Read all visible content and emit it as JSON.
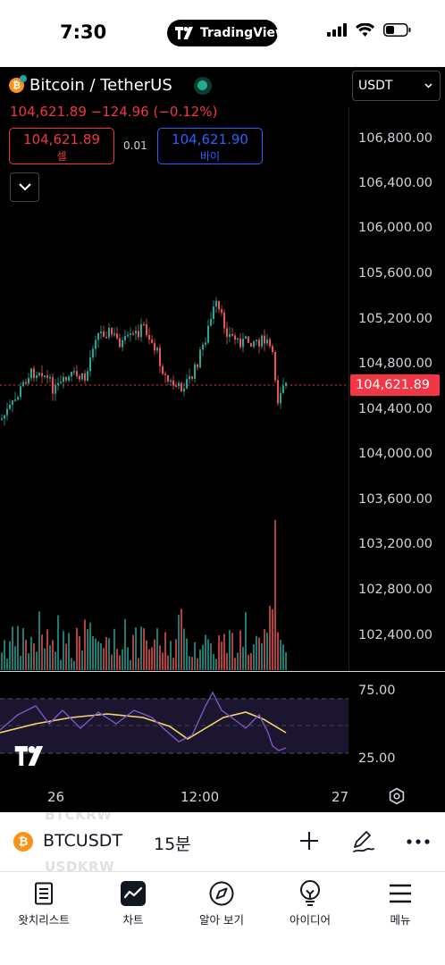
{
  "status_bar": {
    "time": "7:30",
    "app_pill": "TradingView"
  },
  "chart": {
    "symbol_title": "Bitcoin / TetherUS",
    "price_change": "104,621.89 −124.96 (−0.12%)",
    "sell": {
      "price": "104,621.89",
      "label": "셀"
    },
    "spread": "0.01",
    "buy": {
      "price": "104,621.90",
      "label": "바이"
    },
    "currency": "USDT",
    "price_axis": [
      "106,800.00",
      "106,400.00",
      "106,000.00",
      "105,600.00",
      "105,200.00",
      "104,800.00",
      "104,400.00",
      "104,000.00",
      "103,600.00",
      "103,200.00",
      "102,800.00",
      "102,400.00"
    ],
    "last_price": "104,621.89",
    "rsi_axis": [
      "75.00",
      "25.00"
    ],
    "time_axis": [
      "26",
      "12:00",
      "27"
    ],
    "colors": {
      "up": "#26a69a",
      "down": "#ef5350",
      "rsi": "#7e57c2",
      "rsi_ma": "#f5d76e"
    }
  },
  "symbol_bar": {
    "symbol": "BTCUSDT",
    "timeframe": "15분",
    "ghost_above": "BTCKRW",
    "ghost_below": "USDKRW",
    "icons": [
      "plus-icon",
      "draw-pen-icon",
      "more-icon"
    ]
  },
  "tabbar": {
    "tabs": [
      {
        "label": "왓치리스트",
        "icon": "watchlist-icon"
      },
      {
        "label": "차트",
        "icon": "chart-icon"
      },
      {
        "label": "알아 보기",
        "icon": "compass-icon"
      },
      {
        "label": "아이디어",
        "icon": "lightbulb-icon"
      },
      {
        "label": "메뉴",
        "icon": "menu-icon"
      }
    ]
  }
}
